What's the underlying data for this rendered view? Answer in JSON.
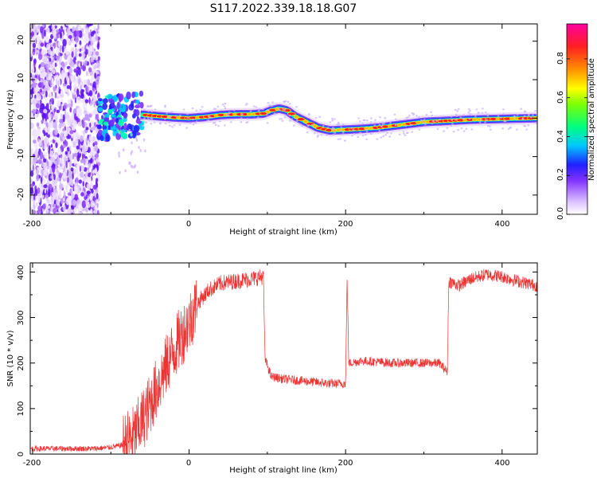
{
  "title": "S117.2022.339.18.18.G07",
  "chart_data": [
    {
      "type": "heatmap",
      "xlabel": "Height of straight line (km)",
      "ylabel": "Frequency (Hz)",
      "xlim": [
        -203,
        445
      ],
      "ylim": [
        -25,
        24.5
      ],
      "x_ticks": [
        "-200",
        "0",
        "200",
        "400"
      ],
      "y_ticks": [
        "-20",
        "-10",
        "0",
        "10",
        "20"
      ],
      "colorbar": {
        "label": "Normalized spectral amplitude",
        "range": [
          0,
          0.98
        ],
        "ticks": [
          "0.0",
          "0.2",
          "0.4",
          "0.6",
          "0.8"
        ]
      },
      "ridge_frequency": {
        "x": [
          -110,
          -90,
          -70,
          -55,
          -40,
          -20,
          0,
          20,
          40,
          60,
          80,
          95,
          105,
          115,
          125,
          135,
          145,
          155,
          165,
          180,
          200,
          220,
          240,
          260,
          280,
          300,
          320,
          340,
          360,
          380,
          400,
          420,
          445
        ],
        "y": [
          0,
          0.5,
          1,
          0.8,
          0.5,
          0.2,
          0,
          0.3,
          0.8,
          1,
          1,
          1.2,
          2,
          2.5,
          2,
          0.5,
          -0.5,
          -1.5,
          -2.5,
          -3.2,
          -3,
          -2.8,
          -2.5,
          -2,
          -1.5,
          -1,
          -0.8,
          -0.6,
          -0.4,
          -0.3,
          -0.2,
          -0.1,
          0
        ]
      },
      "noise_region_x": [
        -203,
        -115
      ]
    },
    {
      "type": "line",
      "xlabel": "Height of straight line (km)",
      "ylabel": "SNR (10 * v/v)",
      "xlim": [
        -203,
        445
      ],
      "ylim": [
        0,
        420
      ],
      "x_ticks": [
        "-200",
        "0",
        "200",
        "400"
      ],
      "y_ticks": [
        "0",
        "100",
        "200",
        "300",
        "400"
      ],
      "color": "#ee3333",
      "series": [
        {
          "x": [
            -203,
            -120,
            -100,
            -85,
            -70,
            -55,
            -40,
            -25,
            -10,
            0,
            10,
            25,
            40,
            60,
            80,
            95,
            97,
            105,
            120,
            150,
            180,
            200,
            202,
            204,
            206,
            220,
            260,
            300,
            320,
            330,
            332,
            345,
            360,
            380,
            400,
            420,
            445
          ],
          "y": [
            12,
            12,
            15,
            20,
            40,
            90,
            150,
            210,
            260,
            290,
            330,
            360,
            375,
            380,
            385,
            390,
            210,
            170,
            165,
            160,
            155,
            155,
            390,
            200,
            200,
            205,
            200,
            200,
            200,
            180,
            380,
            370,
            385,
            395,
            390,
            380,
            370
          ]
        }
      ]
    }
  ]
}
